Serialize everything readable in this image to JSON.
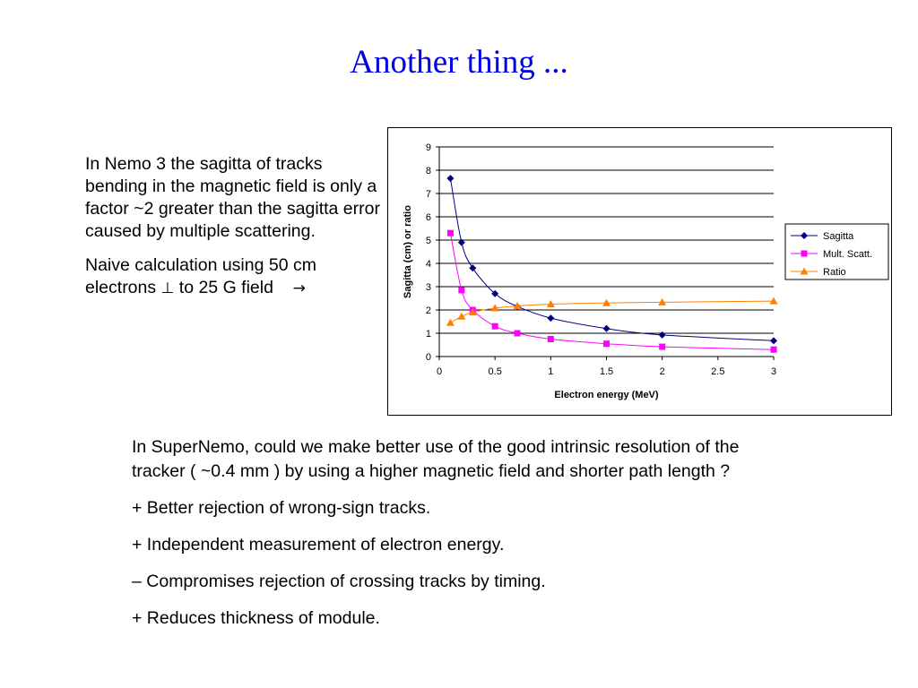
{
  "slide": {
    "title": "Another thing ...",
    "left_paragraphs": [
      "In Nemo 3 the sagitta of tracks bending in the magnetic field is only a factor ~2 greater than the sagitta error caused by multiple scattering.",
      "Naive calculation using 50 cm electrons"
    ],
    "perp_symbol": "⊥",
    "naive_tail": "to 25 G field",
    "arrow_symbol": "→",
    "bottom_paragraphs": [
      "In SuperNemo, could we make better use of the good intrinsic resolution of the tracker ( ~0.4 mm ) by using a higher magnetic field and shorter path length ?",
      "+ Better rejection of wrong-sign tracks.",
      "+ Independent measurement of electron energy.",
      "– Compromises rejection of crossing tracks by timing.",
      "+ Reduces thickness of module."
    ]
  },
  "chart_data": {
    "type": "line",
    "xlabel": "Electron energy (MeV)",
    "ylabel": "Sagitta (cm) or ratio",
    "xlim": [
      0,
      3
    ],
    "ylim": [
      0,
      9
    ],
    "x_ticks": [
      "0",
      "0.5",
      "1",
      "1.5",
      "2",
      "2.5",
      "3"
    ],
    "y_ticks": [
      "0",
      "1",
      "2",
      "3",
      "4",
      "5",
      "6",
      "7",
      "8",
      "9"
    ],
    "grid": "horizontal",
    "legend_position": "right",
    "x": [
      0.1,
      0.2,
      0.3,
      0.5,
      0.7,
      1.0,
      1.5,
      2.0,
      3.0
    ],
    "series": [
      {
        "name": "Sagitta",
        "color": "#000080",
        "marker": "diamond",
        "values": [
          7.65,
          4.9,
          3.8,
          2.7,
          2.15,
          1.65,
          1.2,
          0.93,
          0.68
        ]
      },
      {
        "name": "Mult. Scatt.",
        "color": "#ff00ff",
        "marker": "square",
        "values": [
          5.3,
          2.85,
          2.0,
          1.3,
          1.0,
          0.75,
          0.55,
          0.42,
          0.3
        ]
      },
      {
        "name": "Ratio",
        "color": "#ff8000",
        "marker": "triangle",
        "values": [
          1.45,
          1.72,
          1.9,
          2.08,
          2.17,
          2.25,
          2.3,
          2.33,
          2.38
        ]
      }
    ]
  }
}
